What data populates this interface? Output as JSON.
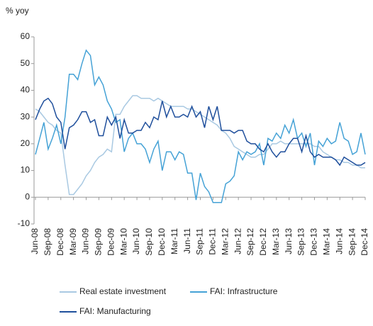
{
  "chart_data": {
    "type": "line",
    "y_label": "% yoy",
    "categories": [
      "Jun-08",
      null,
      null,
      "Sep-08",
      null,
      null,
      "Dec-08",
      null,
      null,
      "Mar-09",
      null,
      null,
      "Jun-09",
      null,
      null,
      "Sep-09",
      null,
      null,
      "Dec-09",
      null,
      null,
      "Mar-10",
      null,
      null,
      "Jun-10",
      null,
      null,
      "Sep-10",
      null,
      null,
      "Dec-10",
      null,
      null,
      "Mar-11",
      null,
      null,
      "Jun-11",
      null,
      null,
      "Sep-11",
      null,
      null,
      "Dec-11",
      null,
      null,
      "Mar-12",
      null,
      null,
      "Jun-12",
      null,
      null,
      "Sep-12",
      null,
      null,
      "Dec-12",
      null,
      null,
      "Mar-13",
      null,
      null,
      "Jun-13",
      null,
      null,
      "Sep-13",
      null,
      null,
      "Dec-13",
      null,
      null,
      "Mar-14",
      null,
      null,
      "Jun-14",
      null,
      null,
      "Sep-14",
      null,
      null,
      "Dec-14"
    ],
    "series": [
      {
        "name": "Real estate investment",
        "color": "#a9c9e2",
        "values": [
          33,
          32,
          30,
          28,
          27,
          25,
          24,
          12,
          1,
          1,
          3,
          5,
          8,
          10,
          13,
          15,
          16,
          18,
          17,
          31,
          31,
          34,
          36,
          38,
          38,
          37,
          37,
          37,
          36,
          37,
          36,
          35,
          34,
          34,
          34,
          34,
          33,
          33,
          32,
          31,
          30,
          29,
          28,
          27,
          25,
          24,
          22,
          19,
          18,
          17,
          16,
          15,
          15,
          16,
          16,
          18,
          20,
          20,
          21,
          20,
          20,
          20,
          20,
          20,
          20,
          20,
          19,
          19,
          17,
          16,
          15,
          14,
          14,
          13,
          13,
          12,
          12,
          11,
          11
        ]
      },
      {
        "name": "FAI: Infrastructure",
        "color": "#45a2d6",
        "values": [
          16,
          22,
          28,
          18,
          22,
          27,
          20,
          30,
          46,
          46,
          44,
          50,
          55,
          53,
          42,
          45,
          42,
          36,
          33,
          28,
          29,
          17,
          22,
          24,
          20,
          20,
          18,
          13,
          18,
          21,
          10,
          17,
          17,
          14,
          17,
          16,
          9,
          9,
          -1,
          9,
          4,
          2,
          -2,
          -2,
          -2,
          5,
          6,
          8,
          17,
          14,
          17,
          16,
          17,
          20,
          12,
          22,
          21,
          24,
          22,
          27,
          24,
          29,
          22,
          24,
          19,
          24,
          12,
          21,
          19,
          22,
          20,
          21,
          28,
          22,
          21,
          16,
          17,
          24,
          16
        ]
      },
      {
        "name": "FAI: Manufacturing",
        "color": "#1f4f9c",
        "values": [
          29,
          33,
          36,
          37,
          35,
          30,
          28,
          18,
          26,
          27,
          29,
          32,
          32,
          28,
          29,
          23,
          23,
          30,
          27,
          30,
          22,
          29,
          24,
          24,
          25,
          25,
          28,
          26,
          30,
          29,
          36,
          30,
          34,
          30,
          30,
          31,
          30,
          34,
          30,
          32,
          26,
          34,
          29,
          34,
          25,
          25,
          25,
          24,
          25,
          25,
          21,
          20,
          20,
          18,
          17,
          20,
          17,
          15,
          17,
          17,
          20,
          22,
          22,
          17,
          23,
          17,
          15,
          16,
          15,
          15,
          15,
          14,
          12,
          15,
          14,
          13,
          12,
          12,
          13
        ]
      }
    ],
    "ylim": [
      -10,
      60
    ],
    "yticks": [
      -10,
      0,
      10,
      20,
      30,
      40,
      50,
      60
    ],
    "grid": false
  }
}
